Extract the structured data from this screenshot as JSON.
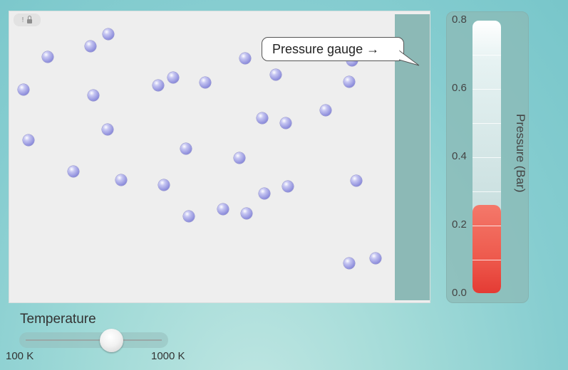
{
  "simulation": {
    "callout_text": "Pressure gauge →",
    "toolbar": {
      "info_icon": "!",
      "lock_icon": "lock-icon"
    }
  },
  "pressure_gauge": {
    "axis_title": "Pressure (Bar)",
    "ticks": [
      "0.8",
      "0.6",
      "0.4",
      "0.2",
      "0.0"
    ],
    "min": 0,
    "max": 0.8,
    "value": 0.26,
    "fill_color": "#e8453b"
  },
  "temperature": {
    "title": "Temperature",
    "min_label": "100 K",
    "max_label": "1000 K",
    "value_fraction": 0.63
  },
  "molecule_color": "#8f8fdc"
}
